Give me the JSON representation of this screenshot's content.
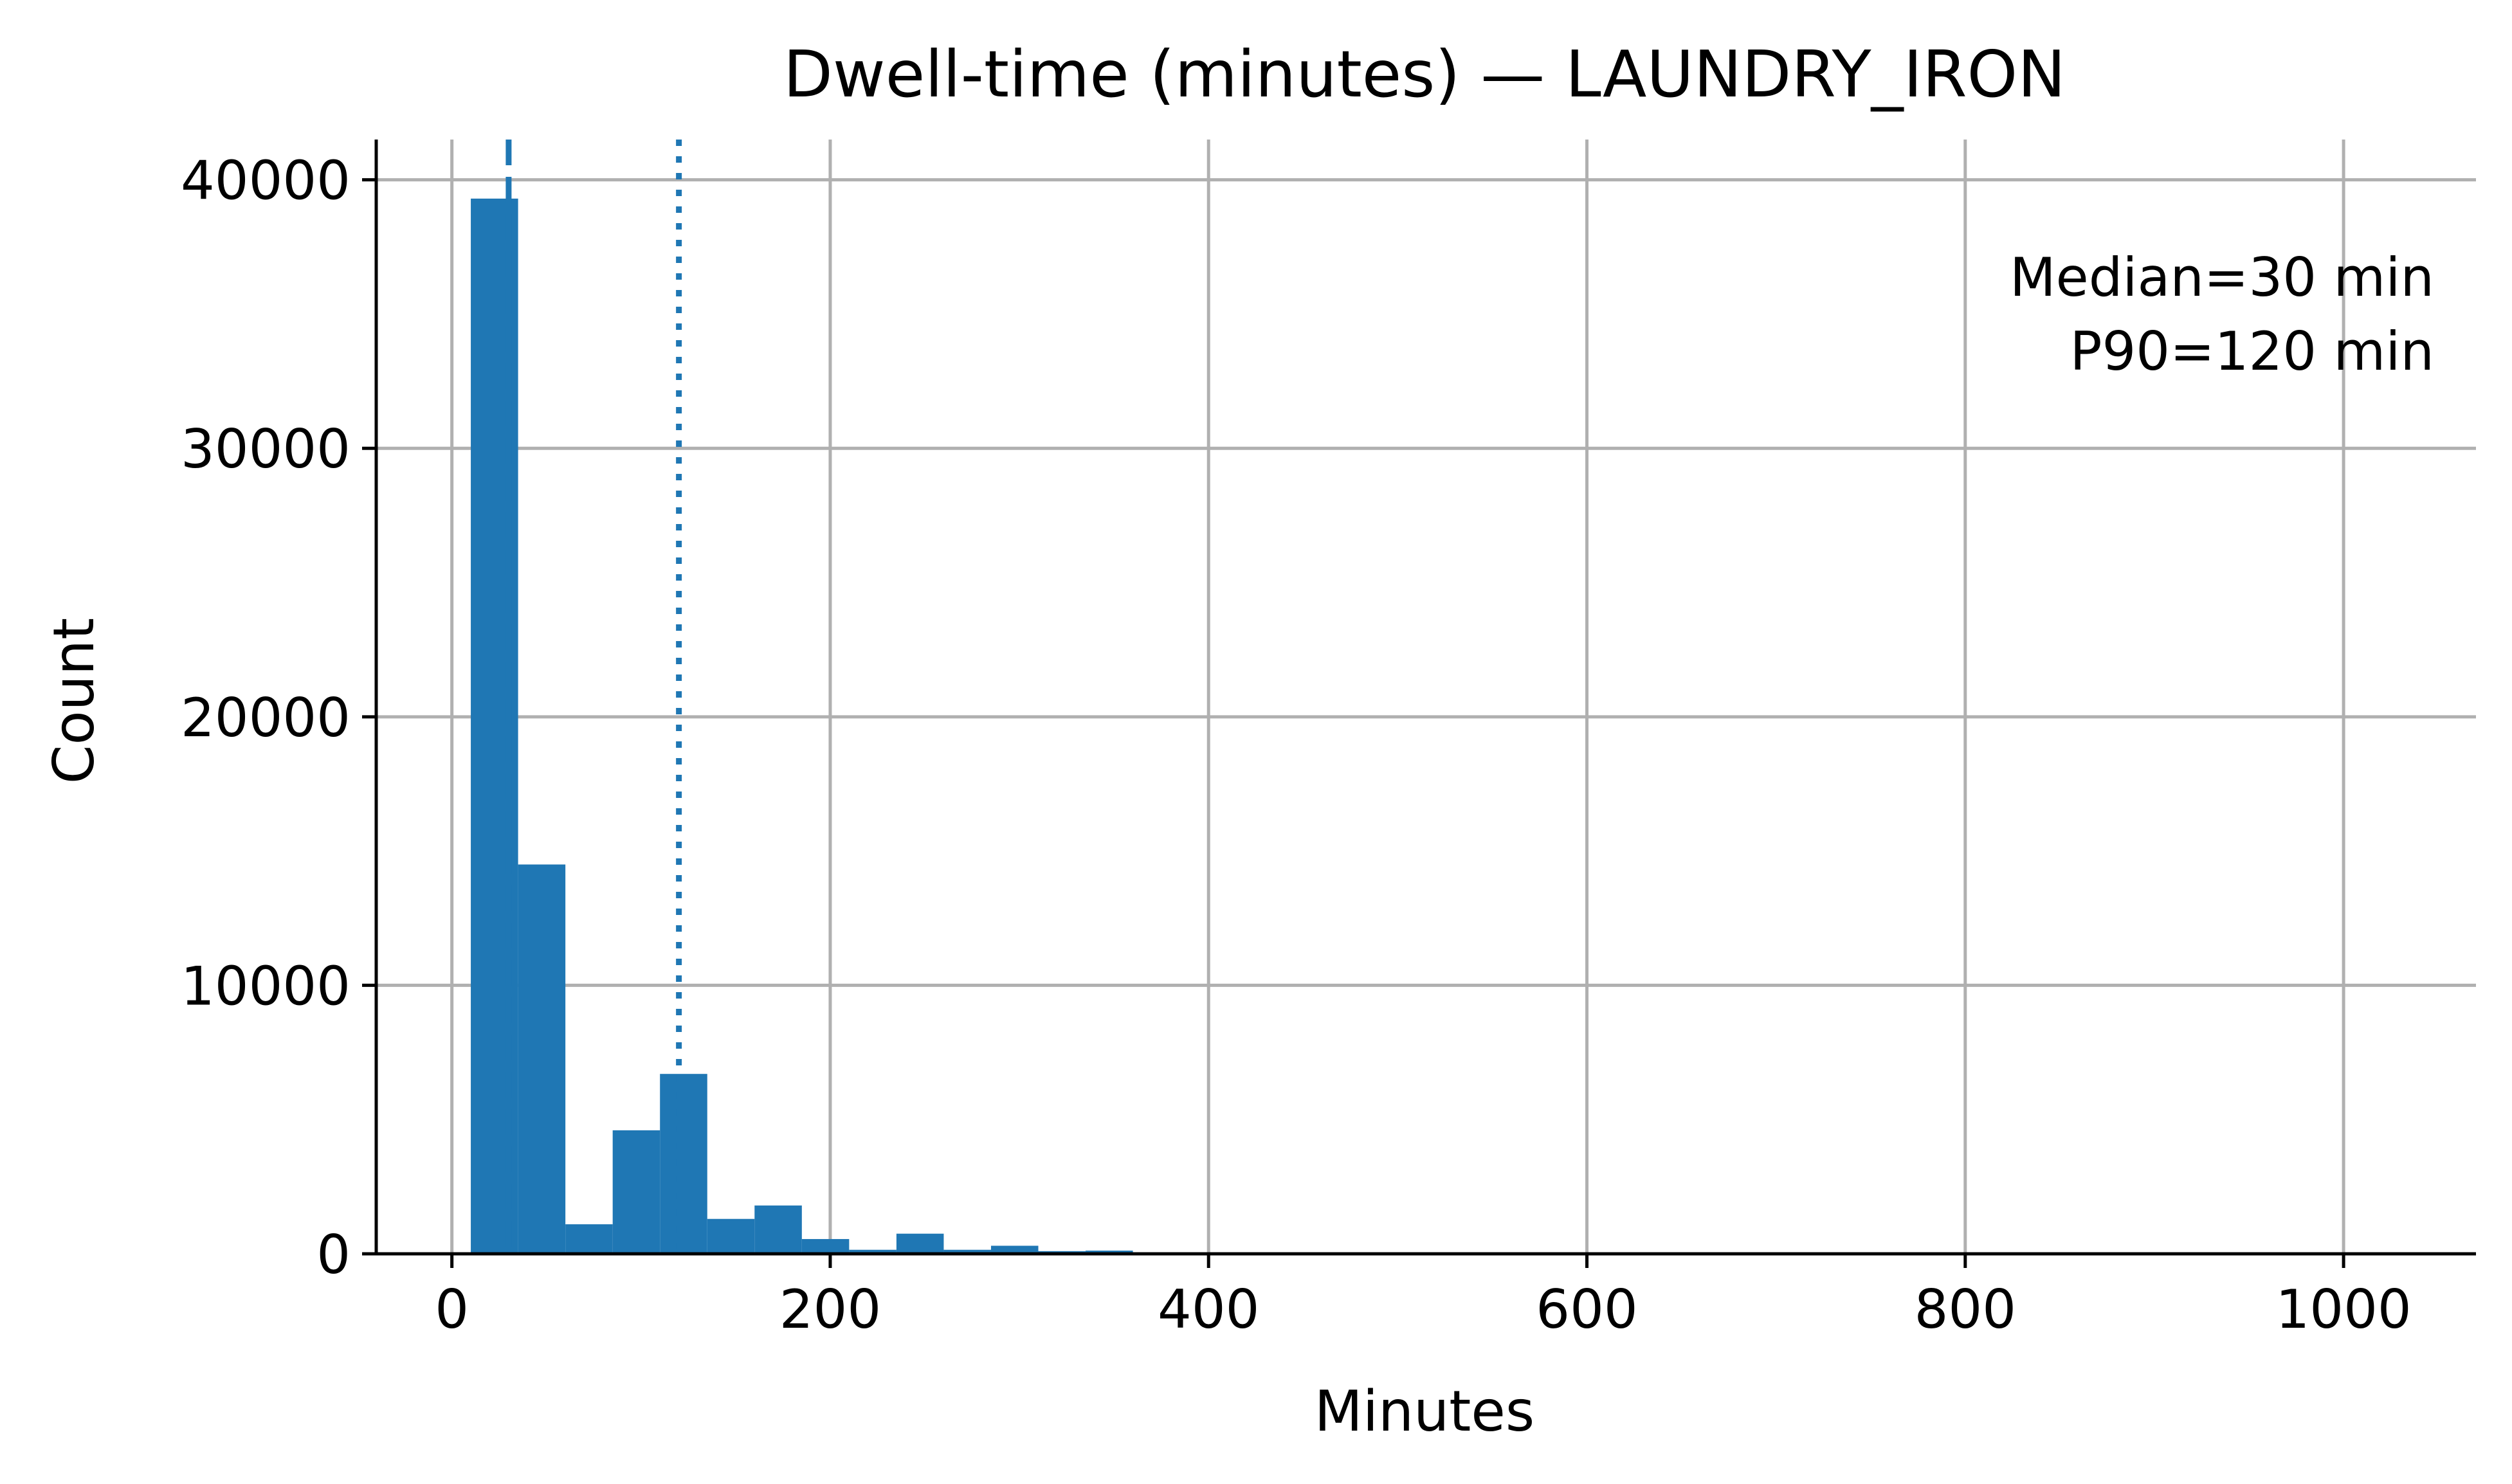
{
  "chart_data": {
    "type": "bar",
    "title": "Dwell-time (minutes) — LAUNDRY_IRON",
    "xlabel": "Minutes",
    "ylabel": "Count",
    "xlim": [
      -40,
      1070
    ],
    "ylim": [
      0,
      41500
    ],
    "xticks": [
      0,
      200,
      400,
      600,
      800,
      1000
    ],
    "yticks": [
      0,
      10000,
      20000,
      30000,
      40000
    ],
    "grid": true,
    "bar_color": "#1f77b4",
    "bin_width": 25,
    "bins": [
      {
        "x0": 10,
        "x1": 35,
        "value": 39300
      },
      {
        "x0": 35,
        "x1": 60,
        "value": 14500
      },
      {
        "x0": 60,
        "x1": 85,
        "value": 1100
      },
      {
        "x0": 85,
        "x1": 110,
        "value": 4600
      },
      {
        "x0": 110,
        "x1": 135,
        "value": 6700
      },
      {
        "x0": 135,
        "x1": 160,
        "value": 1300
      },
      {
        "x0": 160,
        "x1": 185,
        "value": 1800
      },
      {
        "x0": 185,
        "x1": 210,
        "value": 550
      },
      {
        "x0": 210,
        "x1": 235,
        "value": 150
      },
      {
        "x0": 235,
        "x1": 260,
        "value": 750
      },
      {
        "x0": 260,
        "x1": 285,
        "value": 150
      },
      {
        "x0": 285,
        "x1": 310,
        "value": 300
      },
      {
        "x0": 310,
        "x1": 335,
        "value": 100
      },
      {
        "x0": 335,
        "x1": 360,
        "value": 120
      },
      {
        "x0": 360,
        "x1": 385,
        "value": 40
      }
    ],
    "reference_lines": [
      {
        "x": 30,
        "style": "dashed",
        "color": "#1f77b4"
      },
      {
        "x": 120,
        "style": "dotted",
        "color": "#1f77b4"
      }
    ],
    "annotation": {
      "lines": [
        "Median=30 min",
        "P90=120 min"
      ],
      "placement": "top-right"
    }
  }
}
